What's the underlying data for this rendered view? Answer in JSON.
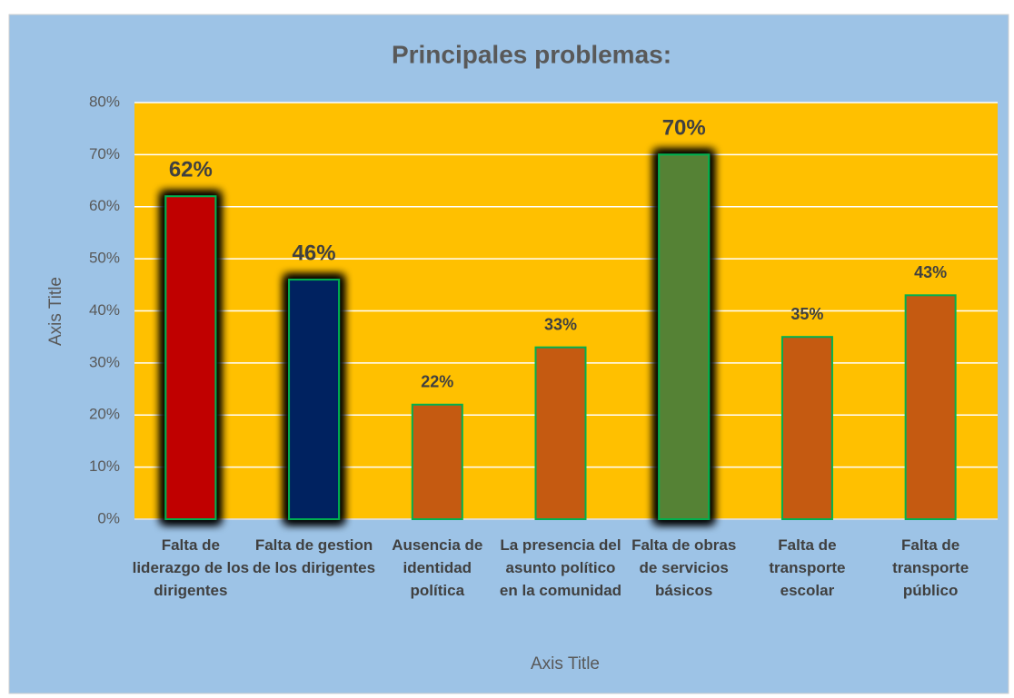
{
  "chart_data": {
    "type": "bar",
    "title": "Principales problemas:",
    "categories": [
      "Falta de liderazgo de los dirigentes",
      "Falta de gestion de los dirigentes",
      "Ausencia de identidad política",
      "La presencia del asunto político en la comunidad",
      "Falta de obras de servicios básicos",
      "Falta de transporte escolar",
      "Falta de transporte público"
    ],
    "values": [
      62,
      46,
      22,
      33,
      70,
      35,
      43
    ],
    "value_labels": [
      "62%",
      "46%",
      "22%",
      "33%",
      "70%",
      "35%",
      "43%"
    ],
    "colors": [
      "#c00000",
      "#002060",
      "#c55a11",
      "#c55a11",
      "#548235",
      "#c55a11",
      "#c55a11"
    ],
    "glow": [
      true,
      true,
      false,
      false,
      true,
      false,
      false
    ],
    "x_label": "Axis Title",
    "y_label": "Axis Title",
    "ylim": [
      0,
      80
    ],
    "yticks": [
      {
        "value": 0,
        "label": "0%"
      },
      {
        "value": 10,
        "label": "10%"
      },
      {
        "value": 20,
        "label": "20%"
      },
      {
        "value": 30,
        "label": "30%"
      },
      {
        "value": 40,
        "label": "40%"
      },
      {
        "value": 50,
        "label": "50%"
      },
      {
        "value": 60,
        "label": "60%"
      },
      {
        "value": 70,
        "label": "70%"
      },
      {
        "value": 80,
        "label": "80%"
      }
    ],
    "grid": true
  }
}
